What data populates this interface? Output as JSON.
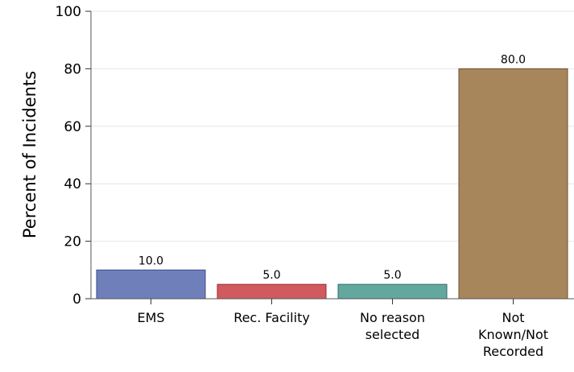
{
  "chart_data": {
    "type": "bar",
    "title": "",
    "xlabel": "",
    "ylabel": "Percent of Incidents",
    "categories": [
      [
        "EMS"
      ],
      [
        "Rec. Facility"
      ],
      [
        "No reason",
        "selected"
      ],
      [
        "Not",
        "Known/Not",
        "Recorded"
      ]
    ],
    "values": [
      10.0,
      5.0,
      5.0,
      80.0
    ],
    "value_labels": [
      "10.0",
      "5.0",
      "5.0",
      "80.0"
    ],
    "colors": [
      "#6f7fba",
      "#d05a5f",
      "#63a89f",
      "#a8865c"
    ],
    "edge_colors": [
      "#3c4a8a",
      "#9c2c31",
      "#2f6f66",
      "#6b4f2c"
    ],
    "ylim": [
      0,
      100
    ],
    "yticks": [
      0,
      20,
      40,
      60,
      80,
      100
    ],
    "ytick_labels": [
      "0",
      "20",
      "40",
      "60",
      "80",
      "100"
    ],
    "grid": true,
    "legend": "none"
  }
}
